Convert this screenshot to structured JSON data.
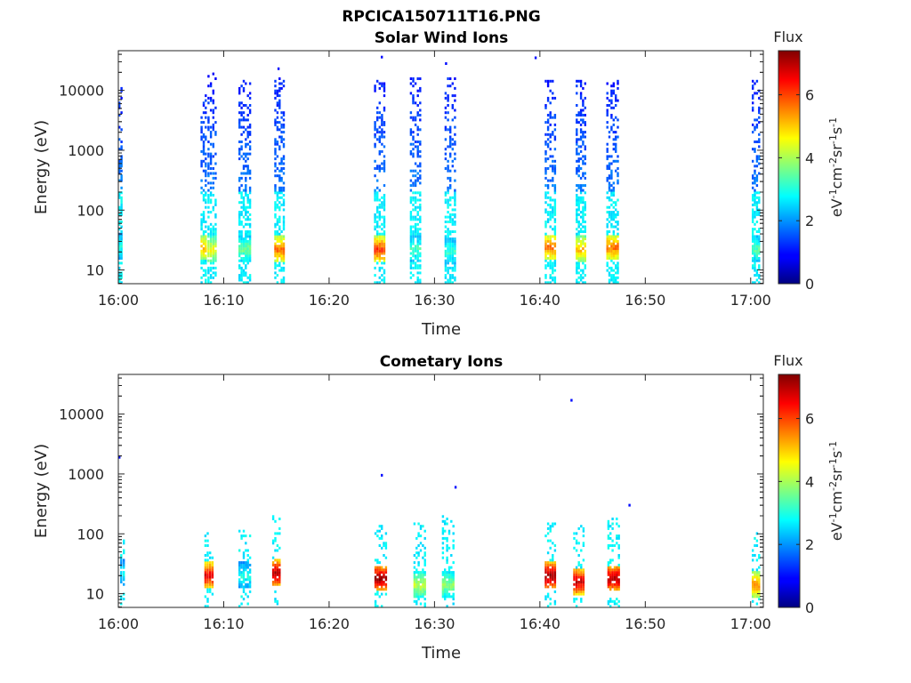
{
  "figure_title": "RPCICA150711T16.PNG",
  "colorbar": {
    "label_top": "Flux",
    "unit_parts": [
      "eV",
      "-1",
      "cm",
      "-2",
      "sr",
      "-1",
      "s",
      "-1"
    ],
    "ticks": [
      "0",
      "2",
      "4",
      "6"
    ],
    "range": [
      0,
      7.4
    ]
  },
  "chart_data": [
    {
      "type": "heatmap",
      "title": "Solar Wind Ions",
      "xlabel": "Time",
      "ylabel": "Energy (eV)",
      "x_ticks": [
        "16:00",
        "16:10",
        "16:20",
        "16:30",
        "16:40",
        "16:50",
        "17:00"
      ],
      "y_ticks": [
        "10",
        "100",
        "1000",
        "10000"
      ],
      "x_range_minutes": [
        0,
        61.2
      ],
      "y_range_ev": [
        5.9,
        46000
      ],
      "y_scale": "log",
      "bursts": [
        {
          "t": 0.2,
          "w": 0.4,
          "emax": 18000,
          "peak": 3.0,
          "core": 25
        },
        {
          "t": 8.1,
          "w": 0.6,
          "emax": 9000,
          "peak": 5.2,
          "core": 24
        },
        {
          "t": 8.9,
          "w": 0.9,
          "emax": 20000,
          "peak": 4.6,
          "core": 22
        },
        {
          "t": 12.0,
          "w": 1.2,
          "emax": 15000,
          "peak": 3.6,
          "core": 22
        },
        {
          "t": 15.3,
          "w": 1.0,
          "emax": 18000,
          "peak": 5.8,
          "core": 22
        },
        {
          "t": 24.8,
          "w": 1.1,
          "emax": 15000,
          "peak": 6.2,
          "core": 22
        },
        {
          "t": 28.2,
          "w": 1.1,
          "emax": 17000,
          "peak": 3.3,
          "core": 22
        },
        {
          "t": 31.5,
          "w": 1.1,
          "emax": 16000,
          "peak": 3.2,
          "core": 20
        },
        {
          "t": 41.0,
          "w": 1.1,
          "emax": 15000,
          "peak": 5.8,
          "core": 24
        },
        {
          "t": 43.9,
          "w": 1.0,
          "emax": 15000,
          "peak": 5.2,
          "core": 22
        },
        {
          "t": 46.9,
          "w": 1.2,
          "emax": 15000,
          "peak": 5.8,
          "core": 24
        },
        {
          "t": 60.5,
          "w": 0.8,
          "emax": 15000,
          "peak": 3.4,
          "core": 22
        }
      ],
      "isolated": [
        [
          25.0,
          36000
        ],
        [
          31.1,
          28000
        ],
        [
          39.6,
          35000
        ],
        [
          15.2,
          23000
        ]
      ]
    },
    {
      "type": "heatmap",
      "title": "Cometary Ions",
      "xlabel": "Time",
      "ylabel": "Energy (eV)",
      "x_ticks": [
        "16:00",
        "16:10",
        "16:20",
        "16:30",
        "16:40",
        "16:50",
        "17:00"
      ],
      "y_ticks": [
        "10",
        "100",
        "1000",
        "10000"
      ],
      "x_range_minutes": [
        0,
        61.2
      ],
      "y_range_ev": [
        5.9,
        46000
      ],
      "y_scale": "log",
      "bursts": [
        {
          "t": 0.4,
          "w": 0.5,
          "emax": 90,
          "peak": 2.8,
          "core": 22
        },
        {
          "t": 8.6,
          "w": 0.9,
          "emax": 120,
          "peak": 6.8,
          "core": 20
        },
        {
          "t": 12.0,
          "w": 1.2,
          "emax": 120,
          "peak": 3.0,
          "core": 20
        },
        {
          "t": 15.0,
          "w": 0.8,
          "emax": 200,
          "peak": 7.2,
          "core": 22
        },
        {
          "t": 24.9,
          "w": 1.2,
          "emax": 140,
          "peak": 7.4,
          "core": 18
        },
        {
          "t": 28.6,
          "w": 1.2,
          "emax": 160,
          "peak": 4.2,
          "core": 14
        },
        {
          "t": 31.3,
          "w": 1.2,
          "emax": 200,
          "peak": 3.8,
          "core": 14
        },
        {
          "t": 41.0,
          "w": 1.1,
          "emax": 150,
          "peak": 7.4,
          "core": 20
        },
        {
          "t": 43.7,
          "w": 1.1,
          "emax": 140,
          "peak": 7.0,
          "core": 16
        },
        {
          "t": 47.0,
          "w": 1.2,
          "emax": 180,
          "peak": 7.2,
          "core": 18
        },
        {
          "t": 60.5,
          "w": 0.8,
          "emax": 110,
          "peak": 5.5,
          "core": 14
        }
      ],
      "isolated": [
        [
          0.1,
          1900
        ],
        [
          25.0,
          950
        ],
        [
          32.0,
          600
        ],
        [
          43.0,
          17000
        ],
        [
          48.5,
          300
        ]
      ]
    }
  ]
}
